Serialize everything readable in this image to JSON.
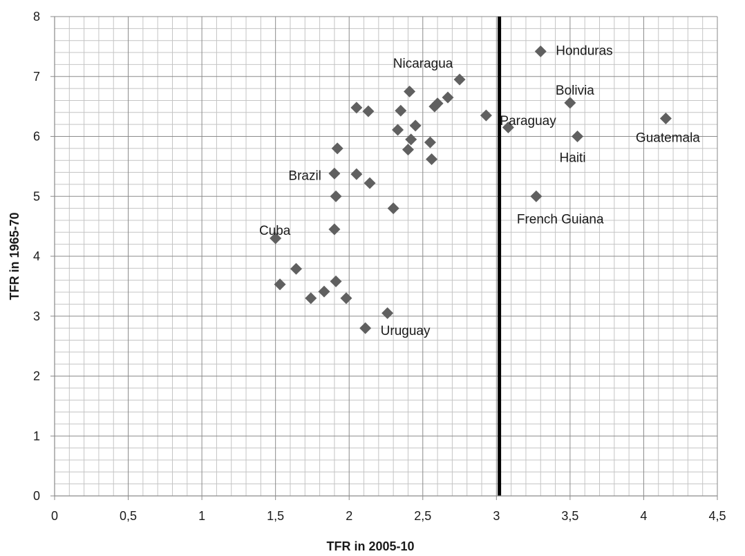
{
  "chart_data": {
    "type": "scatter",
    "title": "",
    "xlabel": "TFR in 2005-10",
    "ylabel": "TFR in 1965-70",
    "xlim": [
      0,
      4.5
    ],
    "ylim": [
      0,
      8
    ],
    "x_ticks": [
      "0",
      "0,5",
      "1",
      "1,5",
      "2",
      "2,5",
      "3",
      "3,5",
      "4",
      "4,5"
    ],
    "y_ticks": [
      "0",
      "1",
      "2",
      "3",
      "4",
      "5",
      "6",
      "7",
      "8"
    ],
    "grid": true,
    "marker": "diamond",
    "marker_color": "#606060",
    "reference_line": {
      "axis": "x",
      "value": 3.02,
      "color": "#000000"
    },
    "points": [
      {
        "x": 3.3,
        "y": 7.42,
        "label": "Honduras"
      },
      {
        "x": 2.75,
        "y": 6.95,
        "label": "Nicaragua"
      },
      {
        "x": 2.67,
        "y": 6.65
      },
      {
        "x": 2.41,
        "y": 6.75
      },
      {
        "x": 2.6,
        "y": 6.55
      },
      {
        "x": 2.58,
        "y": 6.5
      },
      {
        "x": 2.05,
        "y": 6.48
      },
      {
        "x": 2.13,
        "y": 6.42
      },
      {
        "x": 2.35,
        "y": 6.43
      },
      {
        "x": 3.5,
        "y": 6.56,
        "label": "Bolivia"
      },
      {
        "x": 2.93,
        "y": 6.35,
        "label": "Paraguay"
      },
      {
        "x": 4.15,
        "y": 6.3,
        "label": "Guatemala"
      },
      {
        "x": 2.45,
        "y": 6.18
      },
      {
        "x": 2.33,
        "y": 6.11
      },
      {
        "x": 3.08,
        "y": 6.15
      },
      {
        "x": 3.55,
        "y": 6.0,
        "label": "Haiti"
      },
      {
        "x": 2.42,
        "y": 5.95
      },
      {
        "x": 2.55,
        "y": 5.9
      },
      {
        "x": 1.92,
        "y": 5.8
      },
      {
        "x": 2.4,
        "y": 5.78
      },
      {
        "x": 2.56,
        "y": 5.62
      },
      {
        "x": 1.9,
        "y": 5.38,
        "label": "Brazil"
      },
      {
        "x": 2.05,
        "y": 5.37
      },
      {
        "x": 2.14,
        "y": 5.22
      },
      {
        "x": 1.91,
        "y": 5.0
      },
      {
        "x": 3.27,
        "y": 5.0,
        "label": "French Guiana"
      },
      {
        "x": 2.3,
        "y": 4.8
      },
      {
        "x": 1.9,
        "y": 4.45
      },
      {
        "x": 1.5,
        "y": 4.3,
        "label": "Cuba"
      },
      {
        "x": 1.64,
        "y": 3.79
      },
      {
        "x": 1.91,
        "y": 3.58
      },
      {
        "x": 1.53,
        "y": 3.53
      },
      {
        "x": 1.83,
        "y": 3.41
      },
      {
        "x": 1.74,
        "y": 3.3
      },
      {
        "x": 1.98,
        "y": 3.3
      },
      {
        "x": 2.26,
        "y": 3.05
      },
      {
        "x": 2.11,
        "y": 2.8,
        "label": "Uruguay"
      }
    ]
  }
}
